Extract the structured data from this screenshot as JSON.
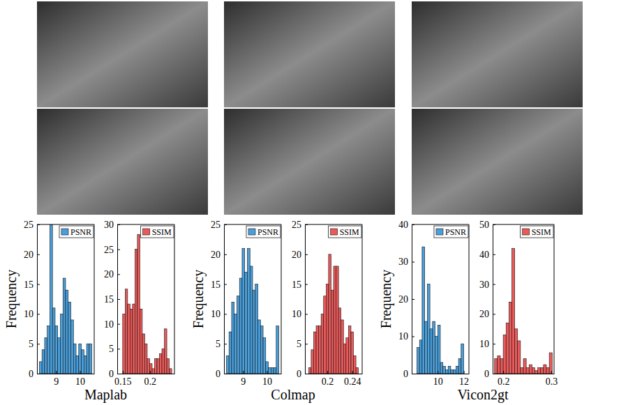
{
  "chart_data": [
    {
      "type": "histogram",
      "x_label": "Maplab",
      "y_label": "Frequency",
      "legend": "top-right",
      "grid": false,
      "bins": [
        8.3,
        8.41,
        8.52,
        8.63,
        8.74,
        8.85,
        8.96,
        9.07,
        9.18,
        9.29,
        9.4,
        9.51,
        9.62,
        9.73,
        9.84,
        9.95,
        10.06,
        10.17,
        10.28,
        10.39,
        10.5
      ],
      "series": [
        {
          "name": "PSNR",
          "color": "#4a9fdb",
          "values": [
            2,
            4,
            6,
            8,
            25,
            11,
            8,
            6,
            10,
            16,
            14,
            12,
            9,
            5,
            3,
            5,
            4,
            3,
            5,
            5
          ]
        }
      ],
      "xlim": [
        8.2,
        10.6
      ],
      "xticks": [
        9,
        10
      ],
      "ylim": [
        0,
        25
      ],
      "yticks": [
        0,
        5,
        10,
        15,
        20,
        25
      ]
    },
    {
      "type": "histogram",
      "legend": "top-right",
      "grid": false,
      "bins": [
        0.15,
        0.1545,
        0.159,
        0.1635,
        0.168,
        0.1725,
        0.177,
        0.1815,
        0.186,
        0.1905,
        0.195,
        0.1995,
        0.204,
        0.2085,
        0.213,
        0.2175,
        0.222,
        0.2265,
        0.231,
        0.2355,
        0.24
      ],
      "series": [
        {
          "name": "SSIM",
          "color": "#eb5a5a",
          "values": [
            12,
            17,
            14,
            13,
            14,
            25,
            28,
            13,
            8,
            6,
            3,
            2,
            1,
            3,
            3,
            4,
            5,
            9,
            3,
            1
          ]
        }
      ],
      "xlim": [
        0.14,
        0.245
      ],
      "xticks": [
        0.15,
        0.2
      ],
      "ylim": [
        0,
        30
      ],
      "yticks": [
        0,
        5,
        10,
        15,
        20,
        25,
        30
      ]
    },
    {
      "type": "histogram",
      "x_label": "Colmap",
      "y_label": "Frequency",
      "legend": "top-right",
      "grid": false,
      "bins": [
        8.3,
        8.41,
        8.52,
        8.63,
        8.74,
        8.85,
        8.96,
        9.07,
        9.18,
        9.29,
        9.4,
        9.51,
        9.62,
        9.73,
        9.84,
        9.95,
        10.06,
        10.17,
        10.28,
        10.39,
        10.5
      ],
      "series": [
        {
          "name": "PSNR",
          "color": "#4a9fdb",
          "values": [
            3,
            7,
            12,
            10,
            13,
            16,
            21,
            17,
            21,
            18,
            14,
            15,
            9,
            8,
            6,
            2,
            1,
            1,
            1,
            8
          ]
        }
      ],
      "xlim": [
        8.2,
        10.6
      ],
      "xticks": [
        9,
        10
      ],
      "ylim": [
        0,
        25
      ],
      "yticks": [
        0,
        5,
        10,
        15,
        20,
        25
      ]
    },
    {
      "type": "histogram",
      "legend": "top-right",
      "grid": false,
      "bins": [
        0.17,
        0.174,
        0.178,
        0.182,
        0.186,
        0.19,
        0.194,
        0.198,
        0.202,
        0.206,
        0.21,
        0.214,
        0.218,
        0.222,
        0.226,
        0.23,
        0.234,
        0.238,
        0.242,
        0.246,
        0.25
      ],
      "series": [
        {
          "name": "SSIM",
          "color": "#eb5a5a",
          "values": [
            1,
            4,
            7,
            8,
            8,
            10,
            13,
            15,
            20,
            14,
            18,
            18,
            11,
            9,
            5,
            6,
            8,
            7,
            3,
            1
          ]
        }
      ],
      "xlim": [
        0.164,
        0.256
      ],
      "xticks": [
        0.2,
        0.24
      ],
      "ylim": [
        0,
        25
      ],
      "yticks": [
        0,
        5,
        10,
        15,
        20,
        25
      ]
    },
    {
      "type": "histogram",
      "x_label": "Vicon2gt",
      "y_label": "Frequency",
      "legend": "top-right",
      "grid": false,
      "bins": [
        8.4,
        8.6,
        8.8,
        9.0,
        9.2,
        9.4,
        9.6,
        9.8,
        10.0,
        10.2,
        10.4,
        10.6,
        10.8,
        11.0,
        11.2,
        11.4,
        11.6,
        11.8,
        12.0
      ],
      "series": [
        {
          "name": "PSNR",
          "color": "#4a9fdb",
          "values": [
            7,
            9,
            34,
            14,
            24,
            12,
            14,
            10,
            13,
            3,
            2,
            1,
            2,
            1,
            1,
            2,
            4,
            8
          ]
        }
      ],
      "xlim": [
        8.0,
        12.4
      ],
      "xticks": [
        10,
        12
      ],
      "ylim": [
        0,
        40
      ],
      "yticks": [
        0,
        10,
        20,
        30,
        40
      ]
    },
    {
      "type": "histogram",
      "legend": "top-right",
      "grid": false,
      "bins": [
        0.182,
        0.188,
        0.194,
        0.2,
        0.206,
        0.212,
        0.218,
        0.224,
        0.23,
        0.236,
        0.242,
        0.248,
        0.254,
        0.26,
        0.266,
        0.272,
        0.278,
        0.284,
        0.29,
        0.296,
        0.302
      ],
      "series": [
        {
          "name": "SSIM",
          "color": "#eb5a5a",
          "values": [
            5,
            6,
            5,
            13,
            17,
            24,
            42,
            15,
            11,
            2,
            5,
            2,
            3,
            2,
            1,
            2,
            2,
            3,
            2,
            7
          ]
        }
      ],
      "xlim": [
        0.178,
        0.306
      ],
      "xticks": [
        0.2,
        0.3
      ],
      "ylim": [
        0,
        50
      ],
      "yticks": [
        0,
        10,
        20,
        30,
        40,
        50
      ]
    }
  ]
}
